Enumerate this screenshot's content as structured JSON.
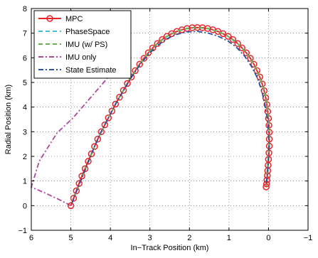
{
  "chart_data": {
    "type": "line",
    "title": "",
    "xlabel": "In−Track Position (km)",
    "ylabel": "Radial Position (km)",
    "xlim": [
      6,
      -1
    ],
    "ylim": [
      -1,
      8
    ],
    "x_reversed": true,
    "grid": true,
    "legend_position": "top-left",
    "x_ticks": [
      6,
      5,
      4,
      3,
      2,
      1,
      0,
      -1
    ],
    "x_tick_labels": [
      "6",
      "5",
      "4",
      "3",
      "2",
      "1",
      "0",
      "−1"
    ],
    "y_ticks": [
      -1,
      0,
      1,
      2,
      3,
      4,
      5,
      6,
      7,
      8
    ],
    "y_tick_labels": [
      "−1",
      "0",
      "1",
      "2",
      "3",
      "4",
      "5",
      "6",
      "7",
      "8"
    ],
    "series": [
      {
        "name": "MPC",
        "color": "#e8242b",
        "style": "solid",
        "marker": "circle",
        "x": [
          5.0,
          4.93,
          4.86,
          4.79,
          4.72,
          4.64,
          4.56,
          4.48,
          4.4,
          4.32,
          4.23,
          4.14,
          4.05,
          3.96,
          3.87,
          3.77,
          3.67,
          3.57,
          3.47,
          3.37,
          3.26,
          3.15,
          3.04,
          2.93,
          2.81,
          2.69,
          2.57,
          2.45,
          2.32,
          2.19,
          2.06,
          1.93,
          1.8,
          1.67,
          1.54,
          1.41,
          1.28,
          1.15,
          1.02,
          0.9,
          0.78,
          0.67,
          0.56,
          0.46,
          0.37,
          0.29,
          0.22,
          0.16,
          0.11,
          0.07,
          0.04,
          0.02,
          0.0,
          -0.01,
          -0.02,
          -0.02,
          -0.02,
          -0.01,
          0.0,
          0.01,
          0.02,
          0.03,
          0.04,
          0.05,
          0.06
        ],
        "y": [
          0.0,
          0.3,
          0.6,
          0.9,
          1.2,
          1.5,
          1.8,
          2.1,
          2.4,
          2.7,
          3.0,
          3.28,
          3.56,
          3.84,
          4.12,
          4.4,
          4.68,
          4.96,
          5.22,
          5.48,
          5.74,
          5.98,
          6.2,
          6.4,
          6.58,
          6.74,
          6.87,
          6.98,
          7.07,
          7.14,
          7.19,
          7.22,
          7.23,
          7.22,
          7.19,
          7.14,
          7.07,
          6.98,
          6.87,
          6.74,
          6.58,
          6.4,
          6.2,
          5.98,
          5.74,
          5.48,
          5.22,
          4.94,
          4.66,
          4.38,
          4.1,
          3.82,
          3.54,
          3.26,
          2.98,
          2.7,
          2.42,
          2.14,
          1.88,
          1.64,
          1.42,
          1.22,
          1.04,
          0.88,
          0.76
        ]
      },
      {
        "name": "PhaseSpace",
        "color": "#3fc2d8",
        "style": "dashed",
        "x": [
          4.97,
          4.85,
          4.7,
          4.55,
          4.4,
          4.23,
          4.05,
          3.87,
          3.67,
          3.47,
          3.26,
          3.04,
          2.81,
          2.57,
          2.32,
          2.06,
          1.8,
          1.54,
          1.28,
          1.02,
          0.78,
          0.56,
          0.37,
          0.22,
          0.11,
          0.04,
          0.0,
          -0.02,
          -0.01,
          0.01,
          0.04,
          0.06
        ],
        "y": [
          0.1,
          0.6,
          1.2,
          1.8,
          2.4,
          3.0,
          3.56,
          4.12,
          4.68,
          5.22,
          5.74,
          6.2,
          6.58,
          6.87,
          7.07,
          7.19,
          7.23,
          7.19,
          7.07,
          6.87,
          6.58,
          6.2,
          5.74,
          5.22,
          4.66,
          4.1,
          3.54,
          2.98,
          2.42,
          1.88,
          1.22,
          0.8
        ]
      },
      {
        "name": "IMU (w/ PS)",
        "color": "#6ab04c",
        "style": "dashed",
        "x": [
          4.97,
          4.85,
          4.7,
          4.55,
          4.4,
          4.23,
          4.05,
          3.87,
          3.67,
          3.47,
          3.26,
          3.04,
          2.81,
          2.57,
          2.32,
          2.06,
          1.8,
          1.54,
          1.28,
          1.02,
          0.78,
          0.56,
          0.37,
          0.22,
          0.11,
          0.04,
          0.0,
          -0.02,
          -0.01,
          0.01,
          0.04,
          0.06
        ],
        "y": [
          0.1,
          0.6,
          1.2,
          1.8,
          2.4,
          3.0,
          3.56,
          4.12,
          4.68,
          5.22,
          5.74,
          6.2,
          6.58,
          6.87,
          7.07,
          7.19,
          7.23,
          7.19,
          7.07,
          6.87,
          6.58,
          6.2,
          5.74,
          5.22,
          4.66,
          4.1,
          3.54,
          2.98,
          2.42,
          1.88,
          1.22,
          0.8
        ]
      },
      {
        "name": "IMU only",
        "color": "#b0479a",
        "style": "dashdot",
        "x": [
          5.0,
          5.3,
          5.7,
          6.0,
          5.8,
          5.35,
          4.95,
          4.6,
          4.25,
          3.85
        ],
        "y": [
          0.0,
          0.25,
          0.55,
          0.75,
          1.8,
          2.95,
          3.55,
          4.2,
          4.85,
          5.6
        ]
      },
      {
        "name": "State Estimate",
        "color": "#2d4f9e",
        "style": "dashdot",
        "x": [
          4.97,
          4.85,
          4.7,
          4.55,
          4.4,
          4.23,
          4.05,
          3.87,
          3.67,
          3.47,
          3.26,
          3.04,
          2.81,
          2.57,
          2.32,
          2.06,
          1.8,
          1.54,
          1.28,
          1.02,
          0.8,
          0.6,
          0.43,
          0.28,
          0.17,
          0.09,
          0.03,
          0.0,
          -0.01,
          0.0,
          0.03,
          0.06
        ],
        "y": [
          0.1,
          0.6,
          1.2,
          1.8,
          2.4,
          3.0,
          3.56,
          4.12,
          4.66,
          5.2,
          5.7,
          6.14,
          6.5,
          6.77,
          6.95,
          7.05,
          7.07,
          7.01,
          6.88,
          6.68,
          6.41,
          6.06,
          5.65,
          5.18,
          4.66,
          4.1,
          3.54,
          2.98,
          2.42,
          1.88,
          1.3,
          0.85
        ]
      }
    ]
  }
}
